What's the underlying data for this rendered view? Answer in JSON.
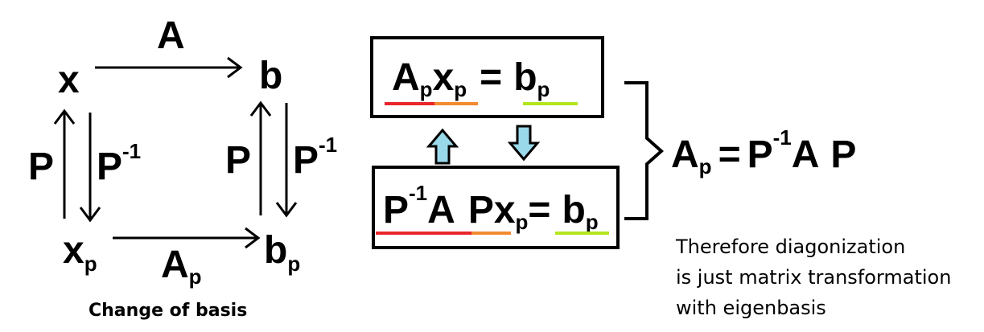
{
  "nodes": {
    "x": "x",
    "b": "b",
    "xp_base": "x",
    "xp_sub": "p",
    "bp_base": "b",
    "bp_sub": "p"
  },
  "edges": {
    "top_label": "A",
    "bottom_base": "A",
    "bottom_sub": "p",
    "left_up": "P",
    "left_down_base": "P",
    "left_down_sup": "-1",
    "right_up": "P",
    "right_down_base": "P",
    "right_down_sup": "-1"
  },
  "caption": "Change of basis",
  "box_top": {
    "A": "A",
    "A_sub": "p",
    "x": "x",
    "x_sub": "p",
    "eq": "=",
    "b": "b",
    "b_sub": "p"
  },
  "box_bottom": {
    "P1": "P",
    "P1_sup": "-1",
    "A": "A",
    "P2": "P",
    "x": "x",
    "x_sub": "p",
    "eq": "=",
    "b": "b",
    "b_sub": "p"
  },
  "result": {
    "A": "A",
    "A_sub": "p",
    "eq": "=",
    "P1": "P",
    "P1_sup": "-1",
    "A2": "A",
    "P2": "P"
  },
  "note_lines": [
    "Therefore diagonization",
    "is just matrix transformation",
    "with eigenbasis"
  ],
  "colors": {
    "red": "#e8262c",
    "orange": "#f28a30",
    "green": "#b4e61e",
    "arrow_fill": "#99d9ea"
  }
}
